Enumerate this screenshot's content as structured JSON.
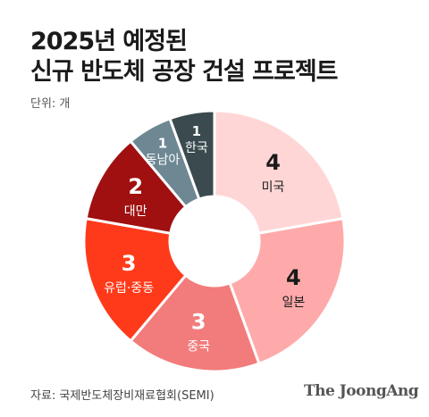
{
  "title_line1": "2025년 예정된",
  "title_line2": "신규 반도체 공장 건설 프로젝트",
  "unit": "단위: 개",
  "source": "자료: 국제반도체장비재료협회(SEMI)",
  "brand": "The JoongAng",
  "chart_data": {
    "type": "pie",
    "donut": true,
    "unit": "개",
    "categories": [
      "미국",
      "일본",
      "중국",
      "유럽·중동",
      "대만",
      "동남아",
      "한국"
    ],
    "values": [
      4,
      4,
      3,
      3,
      2,
      1,
      1
    ],
    "colors": [
      "#ffd6d6",
      "#ffaaaa",
      "#f27c7c",
      "#ff3a1a",
      "#a01010",
      "#6e8893",
      "#3a4a4e"
    ],
    "label_colors": [
      "#1a1a1a",
      "#1a1a1a",
      "#ffffff",
      "#ffffff",
      "#ffffff",
      "#ffffff",
      "#ffffff"
    ],
    "start": "12 o'clock",
    "direction": "clockwise"
  }
}
